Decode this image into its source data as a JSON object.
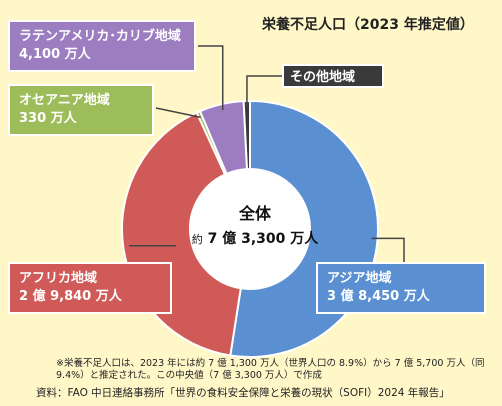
{
  "chart_data": {
    "type": "pie",
    "title": "栄養不足人口（2023 年推定値）",
    "center": {
      "title": "全体",
      "prefix": "約",
      "value_text": "7 億 3,300 万人"
    },
    "slices": [
      {
        "name": "アジア地域",
        "label": "3 億 8,450 万人",
        "value": 38450,
        "color": "#5a8fd2"
      },
      {
        "name": "アフリカ地域",
        "label": "2 億 9,840 万人",
        "value": 29840,
        "color": "#cf5a58"
      },
      {
        "name": "オセアニア地域",
        "label": "330 万人",
        "value": 330,
        "color": "#9dbd5a"
      },
      {
        "name": "ラテンアメリカ･カリブ地域",
        "label": "4,100 万人",
        "value": 4100,
        "color": "#9b7dc0"
      },
      {
        "name": "その他地域",
        "label": "",
        "value": 580,
        "color": "#3a3a3a"
      }
    ]
  },
  "note": "※栄養不足人口は、2023 年には約 7 億 1,300 万人（世界人口の 8.9%）から 7 億 5,700 万人（同 9.4%）と推定された。この中央値（7 億 3,300 万人）で作成",
  "source": "資料：FAO 中日連絡事務所「世界の食料安全保障と栄養の現状（SOFI）2024 年報告」"
}
